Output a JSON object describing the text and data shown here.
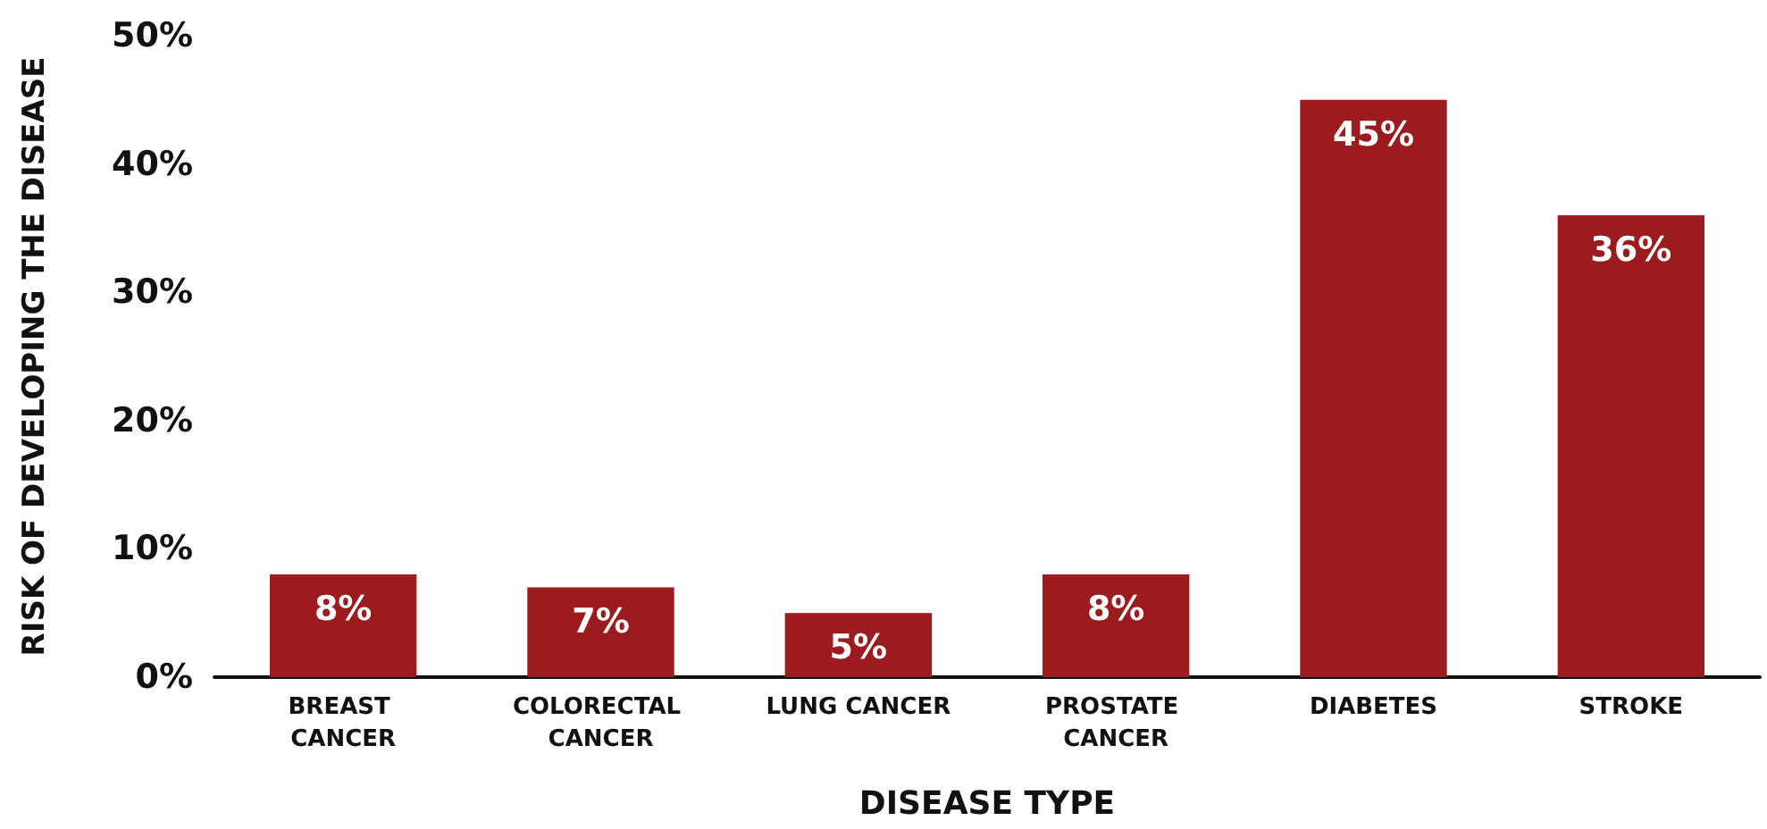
{
  "chart_data": {
    "type": "bar",
    "xlabel": "DISEASE TYPE",
    "ylabel": "RISK OF DEVELOPING THE DISEASE",
    "categories": [
      "BREAST CANCER",
      "COLORECTAL CANCER",
      "LUNG CANCER",
      "PROSTATE CANCER",
      "DIABETES",
      "STROKE"
    ],
    "values": [
      8,
      7,
      5,
      8,
      45,
      36
    ],
    "value_labels": [
      "8%",
      "7%",
      "5%",
      "8%",
      "45%",
      "36%"
    ],
    "color": "#9b1b1f",
    "ylim": [
      0,
      50
    ],
    "yticks": [
      {
        "value": 0,
        "label": "0%"
      },
      {
        "value": 10,
        "label": "10%"
      },
      {
        "value": 20,
        "label": "20%"
      },
      {
        "value": 30,
        "label": "30%"
      },
      {
        "value": 40,
        "label": "40%"
      },
      {
        "value": 50,
        "label": "50%"
      }
    ],
    "grid": false
  }
}
